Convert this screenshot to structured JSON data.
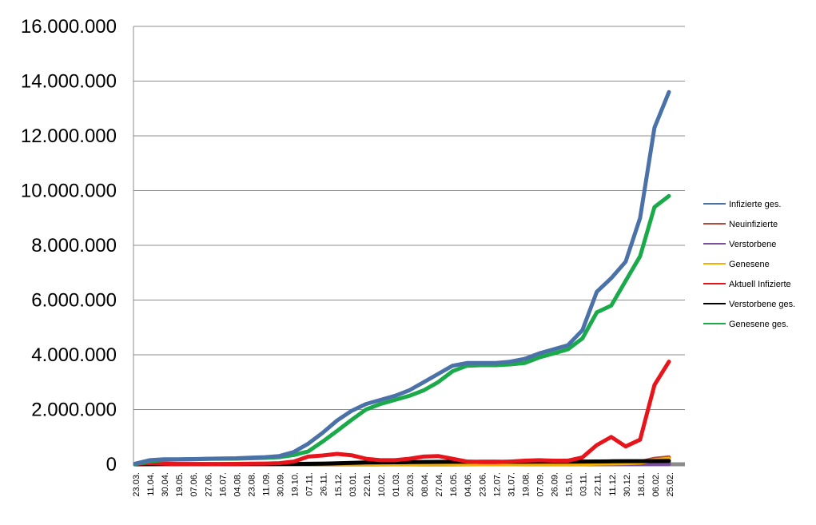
{
  "chart_data": {
    "type": "line",
    "grid": true,
    "legend_position": "right",
    "ylim": [
      0,
      16000000
    ],
    "y_ticks": [
      "0",
      "2.000.000",
      "4.000.000",
      "6.000.000",
      "8.000.000",
      "10.000.000",
      "12.000.000",
      "14.000.000",
      "16.000.000"
    ],
    "y_tick_values": [
      0,
      2000000,
      4000000,
      6000000,
      8000000,
      10000000,
      12000000,
      14000000,
      16000000
    ],
    "categories": [
      "23.03.",
      "11.04.",
      "30.04.",
      "19.05.",
      "07.06.",
      "27.06.",
      "16.07.",
      "04.08.",
      "23.08.",
      "11.09.",
      "30.09.",
      "19.10.",
      "07.11.",
      "26.11.",
      "15.12.",
      "03.01.",
      "22.01.",
      "10.02.",
      "01.03.",
      "20.03.",
      "08.04.",
      "27.04.",
      "16.05.",
      "04.06.",
      "23.06.",
      "12.07.",
      "31.07.",
      "19.08.",
      "07.09.",
      "26.09.",
      "15.10.",
      "03.11.",
      "22.11.",
      "11.12.",
      "30.12.",
      "18.01.",
      "06.02.",
      "25.02."
    ],
    "series": [
      {
        "name": "Infizierte ges.",
        "color": "#4a72a8",
        "values": [
          20000,
          150000,
          180000,
          185000,
          190000,
          200000,
          210000,
          220000,
          240000,
          260000,
          300000,
          450000,
          750000,
          1150000,
          1600000,
          1950000,
          2200000,
          2350000,
          2500000,
          2700000,
          3000000,
          3300000,
          3600000,
          3700000,
          3700000,
          3700000,
          3750000,
          3850000,
          4050000,
          4200000,
          4350000,
          4900000,
          6300000,
          6800000,
          7400000,
          9000000,
          12300000,
          13600000
        ]
      },
      {
        "name": "Neuinfizierte",
        "color": "#b24a3e",
        "values": [
          2000,
          3000,
          2000,
          1000,
          500,
          500,
          1000,
          2000,
          2000,
          2000,
          3000,
          10000,
          20000,
          20000,
          25000,
          20000,
          12000,
          8000,
          8000,
          12000,
          20000,
          20000,
          10000,
          5000,
          2000,
          2000,
          5000,
          10000,
          15000,
          10000,
          8000,
          10000,
          30000,
          40000,
          50000,
          80000,
          200000,
          250000
        ]
      },
      {
        "name": "Verstorbene",
        "color": "#7a4f9c",
        "values": [
          0,
          200,
          200,
          100,
          50,
          50,
          50,
          100,
          100,
          100,
          200,
          500,
          1000,
          1500,
          2000,
          2000,
          1500,
          1000,
          800,
          800,
          1000,
          1000,
          800,
          500,
          300,
          300,
          300,
          500,
          800,
          800,
          800,
          1000,
          1500,
          2000,
          2500,
          3500,
          6000,
          8000
        ]
      },
      {
        "name": "Genesene",
        "color": "#f2b000",
        "values": [
          1000,
          3000,
          3000,
          2000,
          800,
          500,
          800,
          1500,
          2000,
          2000,
          2500,
          6000,
          12000,
          18000,
          22000,
          22000,
          18000,
          12000,
          8000,
          10000,
          15000,
          18000,
          15000,
          8000,
          3000,
          2000,
          3000,
          6000,
          10000,
          10000,
          8000,
          8000,
          20000,
          30000,
          40000,
          60000,
          150000,
          200000
        ]
      },
      {
        "name": "Aktuell Infizierte",
        "color": "#e8141c",
        "values": [
          15000,
          40000,
          20000,
          10000,
          5000,
          5000,
          8000,
          15000,
          20000,
          25000,
          40000,
          100000,
          280000,
          320000,
          380000,
          330000,
          200000,
          150000,
          150000,
          200000,
          280000,
          300000,
          200000,
          100000,
          80000,
          80000,
          100000,
          130000,
          150000,
          130000,
          130000,
          250000,
          700000,
          1000000,
          650000,
          900000,
          2900000,
          3750000
        ]
      },
      {
        "name": "Verstorbene ges.",
        "color": "#000000",
        "values": [
          0,
          3000,
          6000,
          8000,
          8000,
          9000,
          9000,
          9000,
          9000,
          9500,
          9500,
          10500,
          15000,
          22000,
          35000,
          50000,
          65000,
          70000,
          72000,
          78000,
          85000,
          88000,
          90000,
          91000,
          91000,
          91000,
          91000,
          91500,
          92500,
          94000,
          95000,
          98000,
          102000,
          108000,
          113000,
          115000,
          118000,
          120000
        ]
      },
      {
        "name": "Genesene ges.",
        "color": "#1aaa4a",
        "values": [
          5000,
          110000,
          160000,
          175000,
          185000,
          195000,
          200000,
          205000,
          220000,
          235000,
          260000,
          340000,
          470000,
          830000,
          1220000,
          1620000,
          2000000,
          2200000,
          2350000,
          2500000,
          2700000,
          3000000,
          3400000,
          3600000,
          3620000,
          3620000,
          3650000,
          3700000,
          3900000,
          4050000,
          4200000,
          4600000,
          5550000,
          5800000,
          6700000,
          7600000,
          9400000,
          9800000
        ]
      }
    ]
  }
}
